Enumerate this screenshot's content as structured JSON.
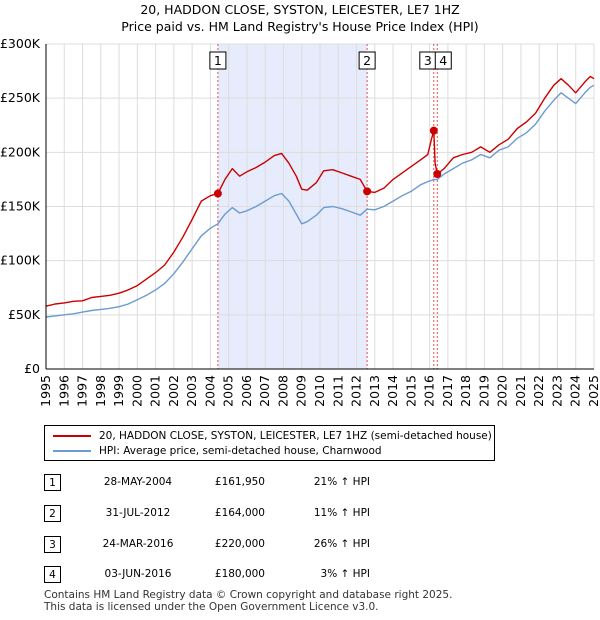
{
  "title": "20, HADDON CLOSE, SYSTON, LEICESTER, LE7 1HZ",
  "subtitle": "Price paid vs. HM Land Registry's House Price Index (HPI)",
  "colors": {
    "price_line": "#cc0000",
    "hpi_line": "#6b9bd1",
    "shade": "#e6ecfb",
    "grid": "#dddddd",
    "marker_line": "#e05050"
  },
  "chart_data": {
    "type": "line",
    "xlim": [
      1995,
      2025
    ],
    "ylim": [
      0,
      300000
    ],
    "y_ticks": [
      0,
      50000,
      100000,
      150000,
      200000,
      250000,
      300000
    ],
    "y_tick_labels": [
      "£0",
      "£50K",
      "£100K",
      "£150K",
      "£200K",
      "£250K",
      "£300K"
    ],
    "x_ticks": [
      1995,
      1996,
      1997,
      1998,
      1999,
      2000,
      2001,
      2002,
      2003,
      2004,
      2005,
      2006,
      2007,
      2008,
      2009,
      2010,
      2011,
      2012,
      2013,
      2014,
      2015,
      2016,
      2017,
      2018,
      2019,
      2020,
      2021,
      2022,
      2023,
      2024,
      2025
    ],
    "x_tick_labels": [
      "1995",
      "1996",
      "1997",
      "1998",
      "1999",
      "2000",
      "2001",
      "2002",
      "2003",
      "2004",
      "2005",
      "2006",
      "2007",
      "2008",
      "2009",
      "2010",
      "2011",
      "2012",
      "2013",
      "2014",
      "2015",
      "2016",
      "2017",
      "2018",
      "2019",
      "2020",
      "2021",
      "2022",
      "2023",
      "2024",
      "2025"
    ],
    "shaded_range": [
      2004.41,
      2012.58
    ],
    "series": [
      {
        "name": "20, HADDON CLOSE, SYSTON, LEICESTER, LE7 1HZ (semi-detached house)",
        "points": [
          [
            1995.0,
            58000
          ],
          [
            1995.5,
            60000
          ],
          [
            1996.0,
            61000
          ],
          [
            1996.5,
            62500
          ],
          [
            1997.0,
            63000
          ],
          [
            1997.5,
            66000
          ],
          [
            1998.0,
            67000
          ],
          [
            1998.5,
            68000
          ],
          [
            1999.0,
            70000
          ],
          [
            1999.5,
            73000
          ],
          [
            2000.0,
            77000
          ],
          [
            2000.5,
            83000
          ],
          [
            2001.0,
            89000
          ],
          [
            2001.5,
            96000
          ],
          [
            2002.0,
            108000
          ],
          [
            2002.5,
            122000
          ],
          [
            2003.0,
            138000
          ],
          [
            2003.5,
            155000
          ],
          [
            2004.0,
            160000
          ],
          [
            2004.41,
            161950
          ],
          [
            2004.8,
            175000
          ],
          [
            2005.2,
            185000
          ],
          [
            2005.6,
            178000
          ],
          [
            2006.0,
            182000
          ],
          [
            2006.5,
            186000
          ],
          [
            2007.0,
            191000
          ],
          [
            2007.5,
            197000
          ],
          [
            2007.9,
            199000
          ],
          [
            2008.3,
            190000
          ],
          [
            2008.7,
            178000
          ],
          [
            2009.0,
            166000
          ],
          [
            2009.3,
            165000
          ],
          [
            2009.8,
            172000
          ],
          [
            2010.2,
            183000
          ],
          [
            2010.7,
            184000
          ],
          [
            2011.2,
            181000
          ],
          [
            2011.7,
            178000
          ],
          [
            2012.2,
            175000
          ],
          [
            2012.58,
            164000
          ],
          [
            2013.0,
            163000
          ],
          [
            2013.5,
            167000
          ],
          [
            2014.0,
            175000
          ],
          [
            2014.5,
            181000
          ],
          [
            2015.0,
            187000
          ],
          [
            2015.5,
            193000
          ],
          [
            2015.9,
            198000
          ],
          [
            2016.1,
            212000
          ],
          [
            2016.23,
            220000
          ],
          [
            2016.3,
            190000
          ],
          [
            2016.42,
            180000
          ],
          [
            2016.8,
            185000
          ],
          [
            2017.3,
            195000
          ],
          [
            2017.8,
            198000
          ],
          [
            2018.3,
            200000
          ],
          [
            2018.8,
            205000
          ],
          [
            2019.3,
            200000
          ],
          [
            2019.8,
            207000
          ],
          [
            2020.3,
            212000
          ],
          [
            2020.8,
            222000
          ],
          [
            2021.3,
            228000
          ],
          [
            2021.8,
            236000
          ],
          [
            2022.3,
            250000
          ],
          [
            2022.8,
            262000
          ],
          [
            2023.2,
            268000
          ],
          [
            2023.6,
            262000
          ],
          [
            2024.0,
            255000
          ],
          [
            2024.5,
            265000
          ],
          [
            2024.8,
            270000
          ],
          [
            2025.0,
            268000
          ]
        ]
      },
      {
        "name": "HPI: Average price, semi-detached house, Charnwood",
        "points": [
          [
            1995.0,
            48000
          ],
          [
            1995.5,
            49000
          ],
          [
            1996.0,
            50000
          ],
          [
            1996.5,
            51000
          ],
          [
            1997.0,
            52500
          ],
          [
            1997.5,
            54000
          ],
          [
            1998.0,
            55000
          ],
          [
            1998.5,
            56000
          ],
          [
            1999.0,
            57500
          ],
          [
            1999.5,
            60000
          ],
          [
            2000.0,
            64000
          ],
          [
            2000.5,
            68000
          ],
          [
            2001.0,
            73000
          ],
          [
            2001.5,
            79000
          ],
          [
            2002.0,
            88000
          ],
          [
            2002.5,
            99000
          ],
          [
            2003.0,
            111000
          ],
          [
            2003.5,
            123000
          ],
          [
            2004.0,
            130000
          ],
          [
            2004.41,
            134000
          ],
          [
            2004.8,
            143000
          ],
          [
            2005.2,
            149000
          ],
          [
            2005.6,
            144000
          ],
          [
            2006.0,
            146000
          ],
          [
            2006.5,
            150000
          ],
          [
            2007.0,
            155000
          ],
          [
            2007.5,
            160000
          ],
          [
            2007.9,
            162000
          ],
          [
            2008.3,
            155000
          ],
          [
            2008.7,
            143000
          ],
          [
            2009.0,
            134000
          ],
          [
            2009.3,
            136000
          ],
          [
            2009.8,
            142000
          ],
          [
            2010.2,
            149000
          ],
          [
            2010.7,
            150000
          ],
          [
            2011.2,
            148000
          ],
          [
            2011.7,
            145000
          ],
          [
            2012.2,
            142000
          ],
          [
            2012.58,
            147500
          ],
          [
            2013.0,
            147000
          ],
          [
            2013.5,
            150000
          ],
          [
            2014.0,
            155000
          ],
          [
            2014.5,
            160000
          ],
          [
            2015.0,
            164000
          ],
          [
            2015.5,
            170000
          ],
          [
            2015.9,
            173000
          ],
          [
            2016.1,
            174000
          ],
          [
            2016.23,
            175000
          ],
          [
            2016.3,
            175000
          ],
          [
            2016.42,
            175000
          ],
          [
            2016.8,
            180000
          ],
          [
            2017.3,
            185000
          ],
          [
            2017.8,
            190000
          ],
          [
            2018.3,
            193000
          ],
          [
            2018.8,
            198000
          ],
          [
            2019.3,
            195000
          ],
          [
            2019.8,
            202000
          ],
          [
            2020.3,
            205000
          ],
          [
            2020.8,
            213000
          ],
          [
            2021.3,
            218000
          ],
          [
            2021.8,
            226000
          ],
          [
            2022.3,
            238000
          ],
          [
            2022.8,
            248000
          ],
          [
            2023.2,
            255000
          ],
          [
            2023.6,
            250000
          ],
          [
            2024.0,
            245000
          ],
          [
            2024.5,
            255000
          ],
          [
            2024.8,
            260000
          ],
          [
            2025.0,
            262000
          ]
        ]
      }
    ],
    "sales": [
      {
        "id": "1",
        "x": 2004.41,
        "price": 161950
      },
      {
        "id": "2",
        "x": 2012.58,
        "price": 164000
      },
      {
        "id": "3",
        "x": 2016.23,
        "price": 220000
      },
      {
        "id": "4",
        "x": 2016.42,
        "price": 180000
      }
    ]
  },
  "legend": {
    "price_label": "20, HADDON CLOSE, SYSTON, LEICESTER, LE7 1HZ (semi-detached house)",
    "hpi_label": "HPI: Average price, semi-detached house, Charnwood"
  },
  "transactions": [
    {
      "id": "1",
      "date": "28-MAY-2004",
      "price": "£161,950",
      "hpi": "21% ↑ HPI"
    },
    {
      "id": "2",
      "date": "31-JUL-2012",
      "price": "£164,000",
      "hpi": "11% ↑ HPI"
    },
    {
      "id": "3",
      "date": "24-MAR-2016",
      "price": "£220,000",
      "hpi": "26% ↑ HPI"
    },
    {
      "id": "4",
      "date": "03-JUN-2016",
      "price": "£180,000",
      "hpi": "3% ↑ HPI"
    }
  ],
  "footer": {
    "line1": "Contains HM Land Registry data © Crown copyright and database right 2025.",
    "line2": "This data is licensed under the Open Government Licence v3.0."
  }
}
